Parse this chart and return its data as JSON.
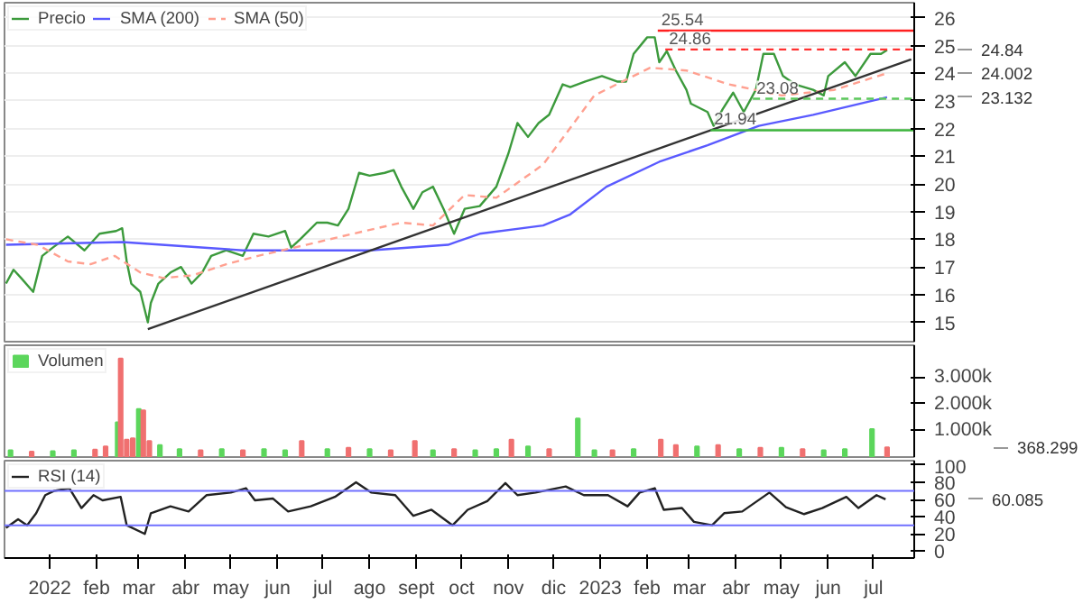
{
  "chart_data": [
    {
      "type": "line",
      "xlim": [
        "2021-12-02",
        "2023-07-28"
      ],
      "ylim": [
        14.3,
        26.55
      ],
      "yticks": [
        15,
        16,
        17,
        18,
        19,
        20,
        21,
        22,
        23,
        24,
        25,
        26
      ],
      "tick_labels": "y",
      "grid": "y",
      "legend": "top left",
      "series": [
        {
          "name": "Precio",
          "color": "#3c9a3c",
          "x": [
            "2021-12-03",
            "2021-12-08",
            "2021-12-13",
            "2021-12-21",
            "2021-12-27",
            "2022-01-03",
            "2022-01-13",
            "2022-01-24",
            "2022-02-03",
            "2022-02-14",
            "2022-02-18",
            "2022-02-21",
            "2022-02-24",
            "2022-03-02",
            "2022-03-07",
            "2022-03-09",
            "2022-03-14",
            "2022-03-22",
            "2022-03-29",
            "2022-04-05",
            "2022-04-12",
            "2022-04-18",
            "2022-04-28",
            "2022-05-09",
            "2022-05-16",
            "2022-05-26",
            "2022-06-06",
            "2022-06-10",
            "2022-06-16",
            "2022-06-27",
            "2022-07-04",
            "2022-07-11",
            "2022-07-18",
            "2022-07-25",
            "2022-08-01",
            "2022-08-11",
            "2022-08-17",
            "2022-08-22",
            "2022-08-30",
            "2022-09-05",
            "2022-09-12",
            "2022-09-19",
            "2022-09-26",
            "2022-10-03",
            "2022-10-13",
            "2022-10-24",
            "2022-11-01",
            "2022-11-07",
            "2022-11-14",
            "2022-11-21",
            "2022-11-28",
            "2022-12-07",
            "2022-12-12",
            "2022-12-22",
            "2023-01-02",
            "2023-01-12",
            "2023-01-18",
            "2023-01-23",
            "2023-02-01",
            "2023-02-06",
            "2023-02-09",
            "2023-02-14",
            "2023-02-20",
            "2023-02-27",
            "2023-03-02",
            "2023-03-13",
            "2023-03-17",
            "2023-03-23",
            "2023-03-30",
            "2023-04-06",
            "2023-04-14",
            "2023-04-19",
            "2023-04-26",
            "2023-05-02",
            "2023-05-10",
            "2023-05-22",
            "2023-05-29",
            "2023-06-01",
            "2023-06-12",
            "2023-06-19",
            "2023-06-29",
            "2023-07-06",
            "2023-07-10"
          ],
          "values": [
            16.4,
            16.9,
            16.6,
            16.1,
            17.4,
            17.7,
            18.1,
            17.6,
            18.2,
            18.3,
            18.4,
            17.2,
            16.4,
            16.1,
            15.0,
            15.7,
            16.4,
            16.8,
            17.0,
            16.4,
            16.8,
            17.4,
            17.6,
            17.4,
            18.2,
            18.1,
            18.3,
            17.7,
            18.0,
            18.6,
            18.6,
            18.5,
            19.1,
            20.4,
            20.3,
            20.4,
            20.5,
            19.9,
            19.1,
            19.7,
            19.9,
            19.1,
            18.2,
            19.1,
            19.2,
            19.9,
            21.1,
            22.2,
            21.7,
            22.2,
            22.5,
            23.6,
            23.5,
            23.7,
            23.9,
            23.7,
            23.7,
            24.7,
            25.3,
            25.3,
            24.4,
            24.8,
            24.1,
            23.4,
            22.9,
            22.6,
            22.1,
            22.7,
            23.3,
            22.6,
            23.4,
            24.7,
            24.7,
            23.9,
            23.6,
            23.4,
            23.2,
            23.9,
            24.4,
            23.9,
            24.7,
            24.7,
            24.84
          ]
        },
        {
          "name": "SMA (200)",
          "color": "#5a5aff",
          "x": [
            "2021-12-03",
            "2022-02-18",
            "2022-05-09",
            "2022-08-01",
            "2022-09-22",
            "2022-10-13",
            "2022-11-24",
            "2022-12-12",
            "2023-01-05",
            "2023-02-09",
            "2023-03-13",
            "2023-04-16",
            "2023-05-22",
            "2023-07-10"
          ],
          "values": [
            17.8,
            17.9,
            17.6,
            17.6,
            17.8,
            18.2,
            18.5,
            18.9,
            19.9,
            20.8,
            21.4,
            22.1,
            22.5,
            23.132
          ]
        },
        {
          "name": "SMA (50)",
          "color": "#ffa090",
          "line_style": "dashed",
          "x": [
            "2021-12-03",
            "2021-12-24",
            "2022-01-13",
            "2022-01-28",
            "2022-02-13",
            "2022-03-02",
            "2022-03-17",
            "2022-04-06",
            "2022-04-28",
            "2022-05-19",
            "2022-06-20",
            "2022-07-21",
            "2022-08-22",
            "2022-09-12",
            "2022-10-03",
            "2022-10-24",
            "2022-11-24",
            "2022-12-28",
            "2023-02-03",
            "2023-02-27",
            "2023-03-27",
            "2023-05-01",
            "2023-06-05",
            "2023-07-10"
          ],
          "values": [
            18.0,
            17.8,
            17.2,
            17.1,
            17.4,
            16.8,
            16.6,
            16.7,
            17.1,
            17.4,
            17.8,
            18.2,
            18.6,
            18.5,
            19.6,
            19.5,
            20.7,
            23.2,
            24.2,
            24.1,
            23.6,
            23.2,
            23.4,
            24.002
          ]
        },
        {
          "color": "#333333",
          "x": [
            "2022-03-07",
            "2023-07-26"
          ],
          "values": [
            14.75,
            24.5
          ]
        },
        {
          "color": "#ff2020",
          "x": [
            "2023-02-08",
            "2023-07-28"
          ],
          "values": [
            25.54,
            25.54
          ]
        },
        {
          "color": "#ff3030",
          "line_style": "dashed",
          "x": [
            "2023-02-13",
            "2023-07-28"
          ],
          "values": [
            24.86,
            24.86
          ]
        },
        {
          "color": "#5cc85c",
          "line_style": "dashed",
          "x": [
            "2023-04-12",
            "2023-07-28"
          ],
          "values": [
            23.08,
            23.08
          ]
        },
        {
          "color": "#3cb43c",
          "x": [
            "2023-03-15",
            "2023-07-28"
          ],
          "values": [
            21.94,
            21.94
          ]
        }
      ],
      "annotations": [
        {
          "text": "25.54",
          "x": "2023-02-08",
          "y": 25.54
        },
        {
          "text": "24.86",
          "x": "2023-02-13",
          "y": 24.86
        },
        {
          "text": "23.08",
          "x": "2023-04-12",
          "y": 23.08
        },
        {
          "text": "21.94",
          "x": "2023-03-15",
          "y": 21.94
        },
        "24.84",
        "23.132",
        "24.002"
      ]
    },
    {
      "type": "bar",
      "xlim": [
        "2021-12-02",
        "2023-07-28"
      ],
      "ylim": [
        0,
        4200
      ],
      "yticks": [
        {
          "value": 1000,
          "label": "1.000k"
        },
        {
          "value": 2000,
          "label": "2.000k"
        },
        {
          "value": 3000,
          "label": "3.000k"
        }
      ],
      "tick_labels": "y",
      "legend": "top left",
      "series": [
        {
          "name": "Volumen",
          "color": "#5cd65c",
          "x": [
            "2021-12-06",
            "2021-12-20",
            "2022-01-03",
            "2022-01-17",
            "2022-01-31",
            "2022-02-07",
            "2022-02-15",
            "2022-02-17",
            "2022-02-21",
            "2022-02-25",
            "2022-03-01",
            "2022-03-04",
            "2022-03-08",
            "2022-03-15",
            "2022-03-28",
            "2022-04-11",
            "2022-04-25",
            "2022-05-09",
            "2022-05-23",
            "2022-06-06",
            "2022-06-17",
            "2022-07-04",
            "2022-07-18",
            "2022-08-01",
            "2022-08-15",
            "2022-08-31",
            "2022-09-12",
            "2022-09-26",
            "2022-10-10",
            "2022-10-24",
            "2022-11-03",
            "2022-11-14",
            "2022-11-28",
            "2022-12-17",
            "2022-12-28",
            "2023-01-09",
            "2023-01-23",
            "2023-02-10",
            "2023-02-20",
            "2023-03-06",
            "2023-03-20",
            "2023-04-03",
            "2023-04-17",
            "2023-05-01",
            "2023-05-15",
            "2023-05-29",
            "2023-06-12",
            "2023-06-30",
            "2023-07-10"
          ],
          "values": [
            250,
            200,
            220,
            250,
            280,
            400,
            1300,
            3700,
            650,
            700,
            1800,
            1750,
            600,
            450,
            300,
            250,
            300,
            250,
            300,
            250,
            600,
            300,
            350,
            300,
            250,
            600,
            250,
            300,
            250,
            300,
            650,
            400,
            300,
            1450,
            250,
            250,
            300,
            650,
            450,
            400,
            450,
            300,
            350,
            350,
            300,
            250,
            300,
            1050,
            368.299
          ],
          "colors": [
            "#5cd65c",
            "#f07070",
            "#5cd65c",
            "#5cd65c",
            "#f07070",
            "#f07070",
            "#5cd65c",
            "#f07070",
            "#f07070",
            "#f07070",
            "#5cd65c",
            "#f07070",
            "#f07070",
            "#5cd65c",
            "#5cd65c",
            "#f07070",
            "#5cd65c",
            "#f07070",
            "#5cd65c",
            "#5cd65c",
            "#f07070",
            "#5cd65c",
            "#f07070",
            "#5cd65c",
            "#f07070",
            "#f07070",
            "#5cd65c",
            "#f07070",
            "#5cd65c",
            "#5cd65c",
            "#f07070",
            "#5cd65c",
            "#f07070",
            "#5cd65c",
            "#5cd65c",
            "#f07070",
            "#5cd65c",
            "#f07070",
            "#f07070",
            "#5cd65c",
            "#f07070",
            "#5cd65c",
            "#f07070",
            "#5cd65c",
            "#f07070",
            "#5cd65c",
            "#5cd65c",
            "#5cd65c",
            "#f07070"
          ]
        }
      ],
      "annotations": [
        "368.299"
      ]
    },
    {
      "type": "line",
      "xlim": [
        "2021-12-02",
        "2023-07-28"
      ],
      "ylim": [
        -8,
        105
      ],
      "yticks": [
        0,
        20,
        40,
        60,
        80,
        100
      ],
      "xticks": [
        {
          "value": "2022-01-01",
          "label": "2022"
        },
        {
          "value": "2022-02-01",
          "label": "feb"
        },
        {
          "value": "2022-03-01",
          "label": "mar"
        },
        {
          "value": "2022-04-01",
          "label": "abr"
        },
        {
          "value": "2022-05-01",
          "label": "may"
        },
        {
          "value": "2022-06-01",
          "label": "jun"
        },
        {
          "value": "2022-07-01",
          "label": "jul"
        },
        {
          "value": "2022-08-01",
          "label": "ago"
        },
        {
          "value": "2022-09-01",
          "label": "sept"
        },
        {
          "value": "2022-10-01",
          "label": "oct"
        },
        {
          "value": "2022-11-01",
          "label": "nov"
        },
        {
          "value": "2022-12-01",
          "label": "dic"
        },
        {
          "value": "2023-01-01",
          "label": "2023"
        },
        {
          "value": "2023-02-01",
          "label": "feb"
        },
        {
          "value": "2023-03-01",
          "label": "mar"
        },
        {
          "value": "2023-04-01",
          "label": "abr"
        },
        {
          "value": "2023-05-01",
          "label": "may"
        },
        {
          "value": "2023-06-01",
          "label": "jun"
        },
        {
          "value": "2023-07-01",
          "label": "jul"
        }
      ],
      "legend": "top left",
      "series": [
        {
          "name": "RSI (14)",
          "color": "#222222",
          "x": [
            "2021-12-03",
            "2021-12-11",
            "2021-12-17",
            "2021-12-23",
            "2021-12-29",
            "2022-01-04",
            "2022-01-14",
            "2022-01-22",
            "2022-01-30",
            "2022-02-05",
            "2022-02-17",
            "2022-02-21",
            "2022-03-05",
            "2022-03-09",
            "2022-03-22",
            "2022-04-03",
            "2022-04-15",
            "2022-05-01",
            "2022-05-11",
            "2022-05-17",
            "2022-05-29",
            "2022-06-08",
            "2022-06-23",
            "2022-07-09",
            "2022-07-23",
            "2022-08-02",
            "2022-08-18",
            "2022-08-30",
            "2022-09-11",
            "2022-09-25",
            "2022-10-05",
            "2022-10-18",
            "2022-10-30",
            "2022-11-07",
            "2022-11-19",
            "2022-12-09",
            "2022-12-21",
            "2023-01-06",
            "2023-01-19",
            "2023-01-27",
            "2023-02-06",
            "2023-02-12",
            "2023-02-24",
            "2023-03-04",
            "2023-03-16",
            "2023-03-24",
            "2023-04-05",
            "2023-04-23",
            "2023-05-04",
            "2023-05-16",
            "2023-05-28",
            "2023-06-13",
            "2023-06-21",
            "2023-07-03",
            "2023-07-09"
          ],
          "values": [
            27,
            37,
            30,
            44,
            65,
            70,
            73,
            50,
            65,
            59,
            63,
            30,
            20,
            44,
            52,
            46,
            65,
            68,
            73,
            59,
            61,
            46,
            52,
            63,
            80,
            68,
            65,
            41,
            48,
            30,
            48,
            58,
            79,
            65,
            68,
            75,
            65,
            65,
            52,
            68,
            73,
            48,
            50,
            34,
            30,
            44,
            46,
            68,
            51,
            43,
            50,
            63,
            50,
            65,
            60.085
          ]
        }
      ],
      "ref_lines": [
        {
          "axis": "y",
          "value": 70,
          "color": "#7070ff"
        },
        {
          "axis": "y",
          "value": 30,
          "color": "#7070ff"
        }
      ],
      "annotations": [
        "60.085"
      ]
    }
  ]
}
